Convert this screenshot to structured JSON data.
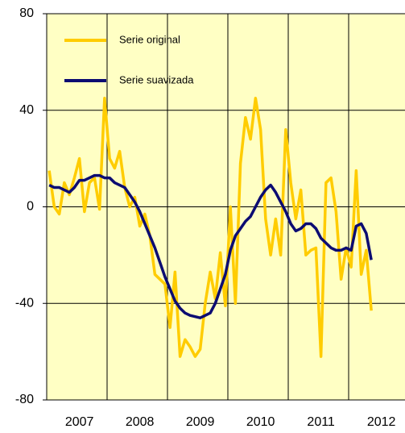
{
  "chart_data": {
    "type": "line",
    "categories": [
      null,
      null,
      null,
      null,
      null,
      null,
      "2007",
      null,
      null,
      null,
      null,
      null,
      null,
      null,
      null,
      null,
      null,
      null,
      "2008",
      null,
      null,
      null,
      null,
      null,
      null,
      null,
      null,
      null,
      null,
      null,
      "2009",
      null,
      null,
      null,
      null,
      null,
      null,
      null,
      null,
      null,
      null,
      null,
      "2010",
      null,
      null,
      null,
      null,
      null,
      null,
      null,
      null,
      null,
      null,
      null,
      "2011",
      null,
      null,
      null,
      null,
      null,
      null,
      null,
      null,
      null,
      null,
      null,
      "2012",
      null,
      null,
      null,
      null,
      null
    ],
    "series": [
      {
        "name": "Serie original",
        "color": "#ffcc00",
        "values": [
          15,
          0,
          -3,
          10,
          5,
          12,
          20,
          -2,
          10,
          12,
          -1,
          45,
          20,
          16,
          23,
          8,
          0,
          4,
          -8,
          -3,
          -12,
          -28,
          -30,
          -32,
          -50,
          -27,
          -62,
          -55,
          -58,
          -62,
          -59,
          -40,
          -27,
          -38,
          -19,
          -41,
          0,
          -40,
          18,
          37,
          28,
          45,
          32,
          -5,
          -20,
          -5,
          -20,
          32,
          10,
          -5,
          7,
          -20,
          -18,
          -17,
          -62,
          10,
          12,
          -2,
          -30,
          -17,
          -25,
          15,
          -28,
          -18,
          -43,
          null,
          null,
          null,
          null,
          null,
          null,
          null
        ]
      },
      {
        "name": "Serie suavizada",
        "color": "#0c0c72",
        "values": [
          9,
          8,
          8,
          7,
          6,
          8,
          11,
          11,
          12,
          13,
          13,
          12,
          12,
          10,
          9,
          8,
          5,
          2,
          -2,
          -7,
          -12,
          -17,
          -23,
          -29,
          -34,
          -39,
          -42,
          -44,
          -45,
          -45.5,
          -46,
          -45,
          -44,
          -40,
          -34,
          -28,
          -18,
          -12,
          -9,
          -6,
          -4,
          0,
          4,
          7,
          9,
          6,
          2,
          -2,
          -7,
          -10,
          -9,
          -7,
          -7,
          -9,
          -13,
          -15,
          -17,
          -18,
          -18,
          -17,
          -18,
          -8,
          -7,
          -11,
          -22,
          null,
          null,
          null,
          null,
          null,
          null,
          null
        ]
      }
    ],
    "ylim": [
      -80,
      80
    ],
    "yticks": [
      -80,
      -40,
      0,
      40,
      80
    ],
    "grid": true,
    "legend": "top-left"
  }
}
